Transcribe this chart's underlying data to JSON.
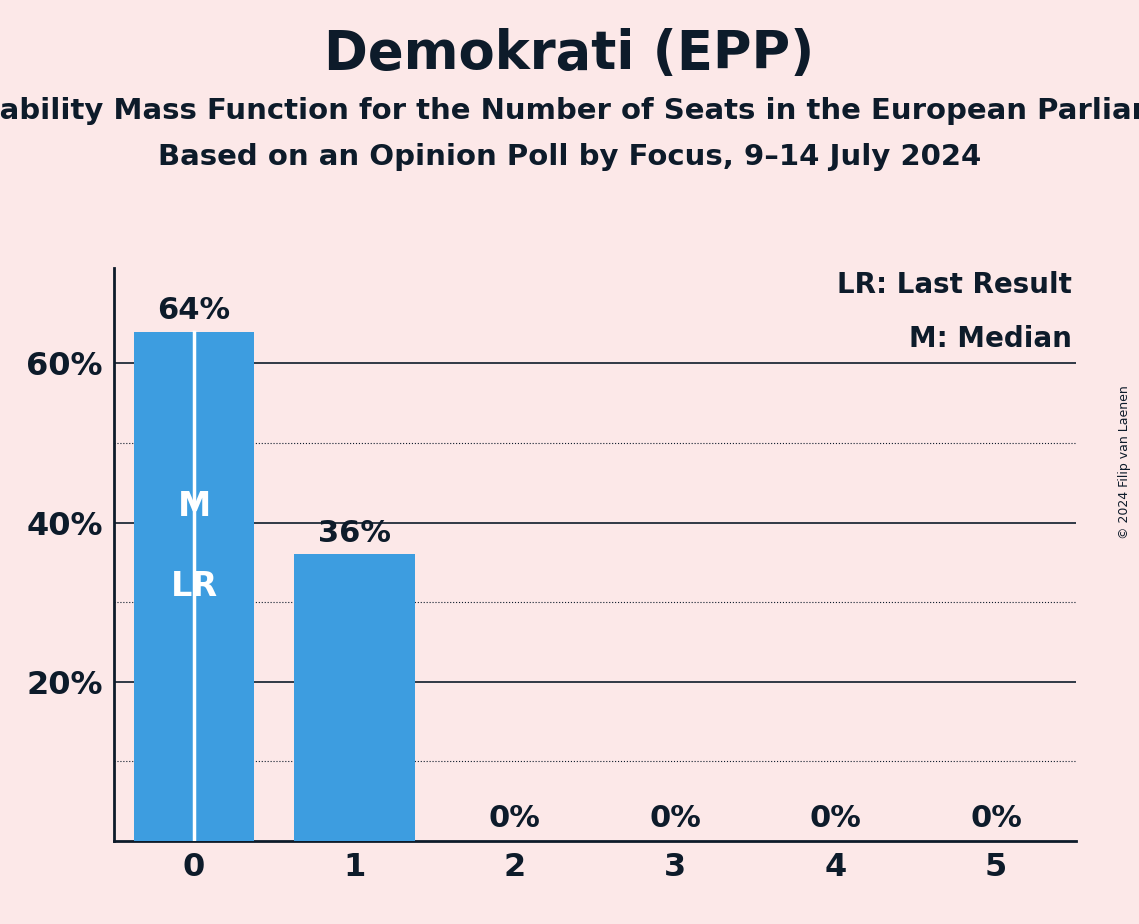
{
  "title": "Demokrati (EPP)",
  "subtitle1": "Probability Mass Function for the Number of Seats in the European Parliament",
  "subtitle2": "Based on an Opinion Poll by Focus, 9–14 July 2024",
  "copyright": "© 2024 Filip van Laenen",
  "categories": [
    0,
    1,
    2,
    3,
    4,
    5
  ],
  "values": [
    0.64,
    0.36,
    0.0,
    0.0,
    0.0,
    0.0
  ],
  "bar_color": "#3d9de0",
  "background_color": "#fce8e8",
  "text_color": "#0d1b2a",
  "inside_label_color": "#ffffff",
  "median_seat": 0,
  "last_result_seat": 0,
  "legend_lr": "LR: Last Result",
  "legend_m": "M: Median",
  "yticks": [
    0.2,
    0.4,
    0.6
  ],
  "ytick_labels": [
    "20%",
    "40%",
    "60%"
  ],
  "solid_gridlines": [
    0.2,
    0.4,
    0.6
  ],
  "dotted_gridlines": [
    0.1,
    0.3,
    0.5
  ],
  "bar_width": 0.75,
  "title_fontsize": 38,
  "subtitle_fontsize": 21,
  "axis_fontsize": 23,
  "bar_label_fontsize": 22,
  "inside_label_fontsize": 24,
  "legend_fontsize": 20,
  "copyright_fontsize": 9
}
